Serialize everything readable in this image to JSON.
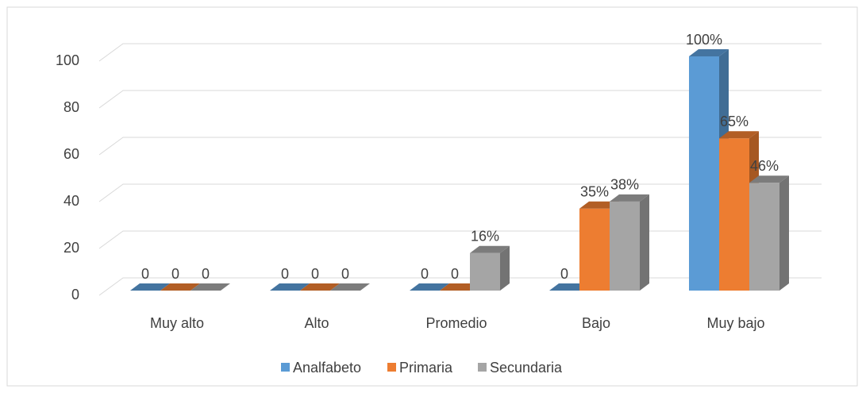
{
  "chart_data": {
    "type": "bar3d",
    "categories": [
      "Muy alto",
      "Alto",
      "Promedio",
      "Bajo",
      "Muy bajo"
    ],
    "series": [
      {
        "name": "Analfabeto",
        "color": "#5b9bd5",
        "values": [
          0,
          0,
          0,
          0,
          100
        ],
        "value_labels": [
          "0",
          "0",
          "0",
          "0",
          "100%"
        ]
      },
      {
        "name": "Primaria",
        "color": "#ed7d31",
        "values": [
          0,
          0,
          0,
          35,
          65
        ],
        "value_labels": [
          "0",
          "0",
          "0",
          "35%",
          "65%"
        ]
      },
      {
        "name": "Secundaria",
        "color": "#a5a5a5",
        "values": [
          0,
          0,
          16,
          38,
          46
        ],
        "value_labels": [
          "0",
          "0",
          "16%",
          "38%",
          "46%"
        ]
      }
    ],
    "ylim": [
      0,
      100
    ],
    "yticks": [
      0,
      20,
      40,
      60,
      80,
      100
    ],
    "grid": true,
    "legend": "bottom"
  }
}
